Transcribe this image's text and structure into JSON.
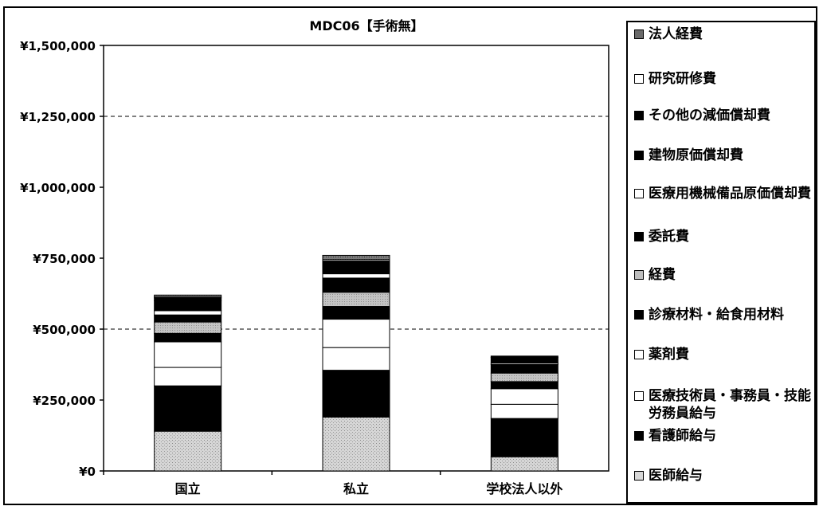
{
  "chart_data": {
    "type": "stacked_bar",
    "title": "MDC06【手術無】",
    "categories": [
      "国立",
      "私立",
      "学校法人以外"
    ],
    "y_ticks": [
      "¥0",
      "¥250,000",
      "¥500,000",
      "¥750,000",
      "¥1,000,000",
      "¥1,250,000",
      "¥1,500,000"
    ],
    "ylim": [
      0,
      1500000
    ],
    "gridlines": [
      500000,
      1250000
    ],
    "legend_position": "right",
    "series": [
      {
        "name": "医師給与",
        "fill": "dot",
        "values": [
          140000,
          190000,
          50000
        ]
      },
      {
        "name": "看護師給与",
        "fill": "black",
        "values": [
          160000,
          165000,
          135000
        ]
      },
      {
        "name": "医療技術員・事務員・技能労務員給与",
        "fill": "white",
        "values": [
          65000,
          80000,
          50000
        ]
      },
      {
        "name": "薬剤費",
        "fill": "white",
        "values": [
          90000,
          100000,
          55000
        ]
      },
      {
        "name": "診療材料・給食用材料",
        "fill": "black",
        "values": [
          30000,
          45000,
          25000
        ]
      },
      {
        "name": "経費",
        "fill": "light",
        "values": [
          40000,
          50000,
          30000
        ]
      },
      {
        "name": "委託費",
        "fill": "black",
        "values": [
          25000,
          50000,
          30000
        ]
      },
      {
        "name": "医療用機械備品原価償却費",
        "fill": "white",
        "values": [
          15000,
          15000,
          5000
        ]
      },
      {
        "name": "建物原価償却費",
        "fill": "black",
        "values": [
          35000,
          35000,
          20000
        ]
      },
      {
        "name": "その他の減価償却費",
        "fill": "black",
        "values": [
          10000,
          10000,
          5000
        ]
      },
      {
        "name": "研究研修費",
        "fill": "white",
        "values": [
          3000,
          5000,
          0
        ]
      },
      {
        "name": "法人経費",
        "fill": "dark",
        "values": [
          7000,
          15000,
          0
        ]
      }
    ],
    "legend_order": [
      "法人経費",
      "研究研修費",
      "その他の減価償却費",
      "建物原価償却費",
      "医療用機械備品原価償却費",
      "委託費",
      "経費",
      "診療材料・給食用材料",
      "薬剤費",
      "医療技術員・事務員・技能労務員給与",
      "看護師給与",
      "医師給与"
    ]
  }
}
